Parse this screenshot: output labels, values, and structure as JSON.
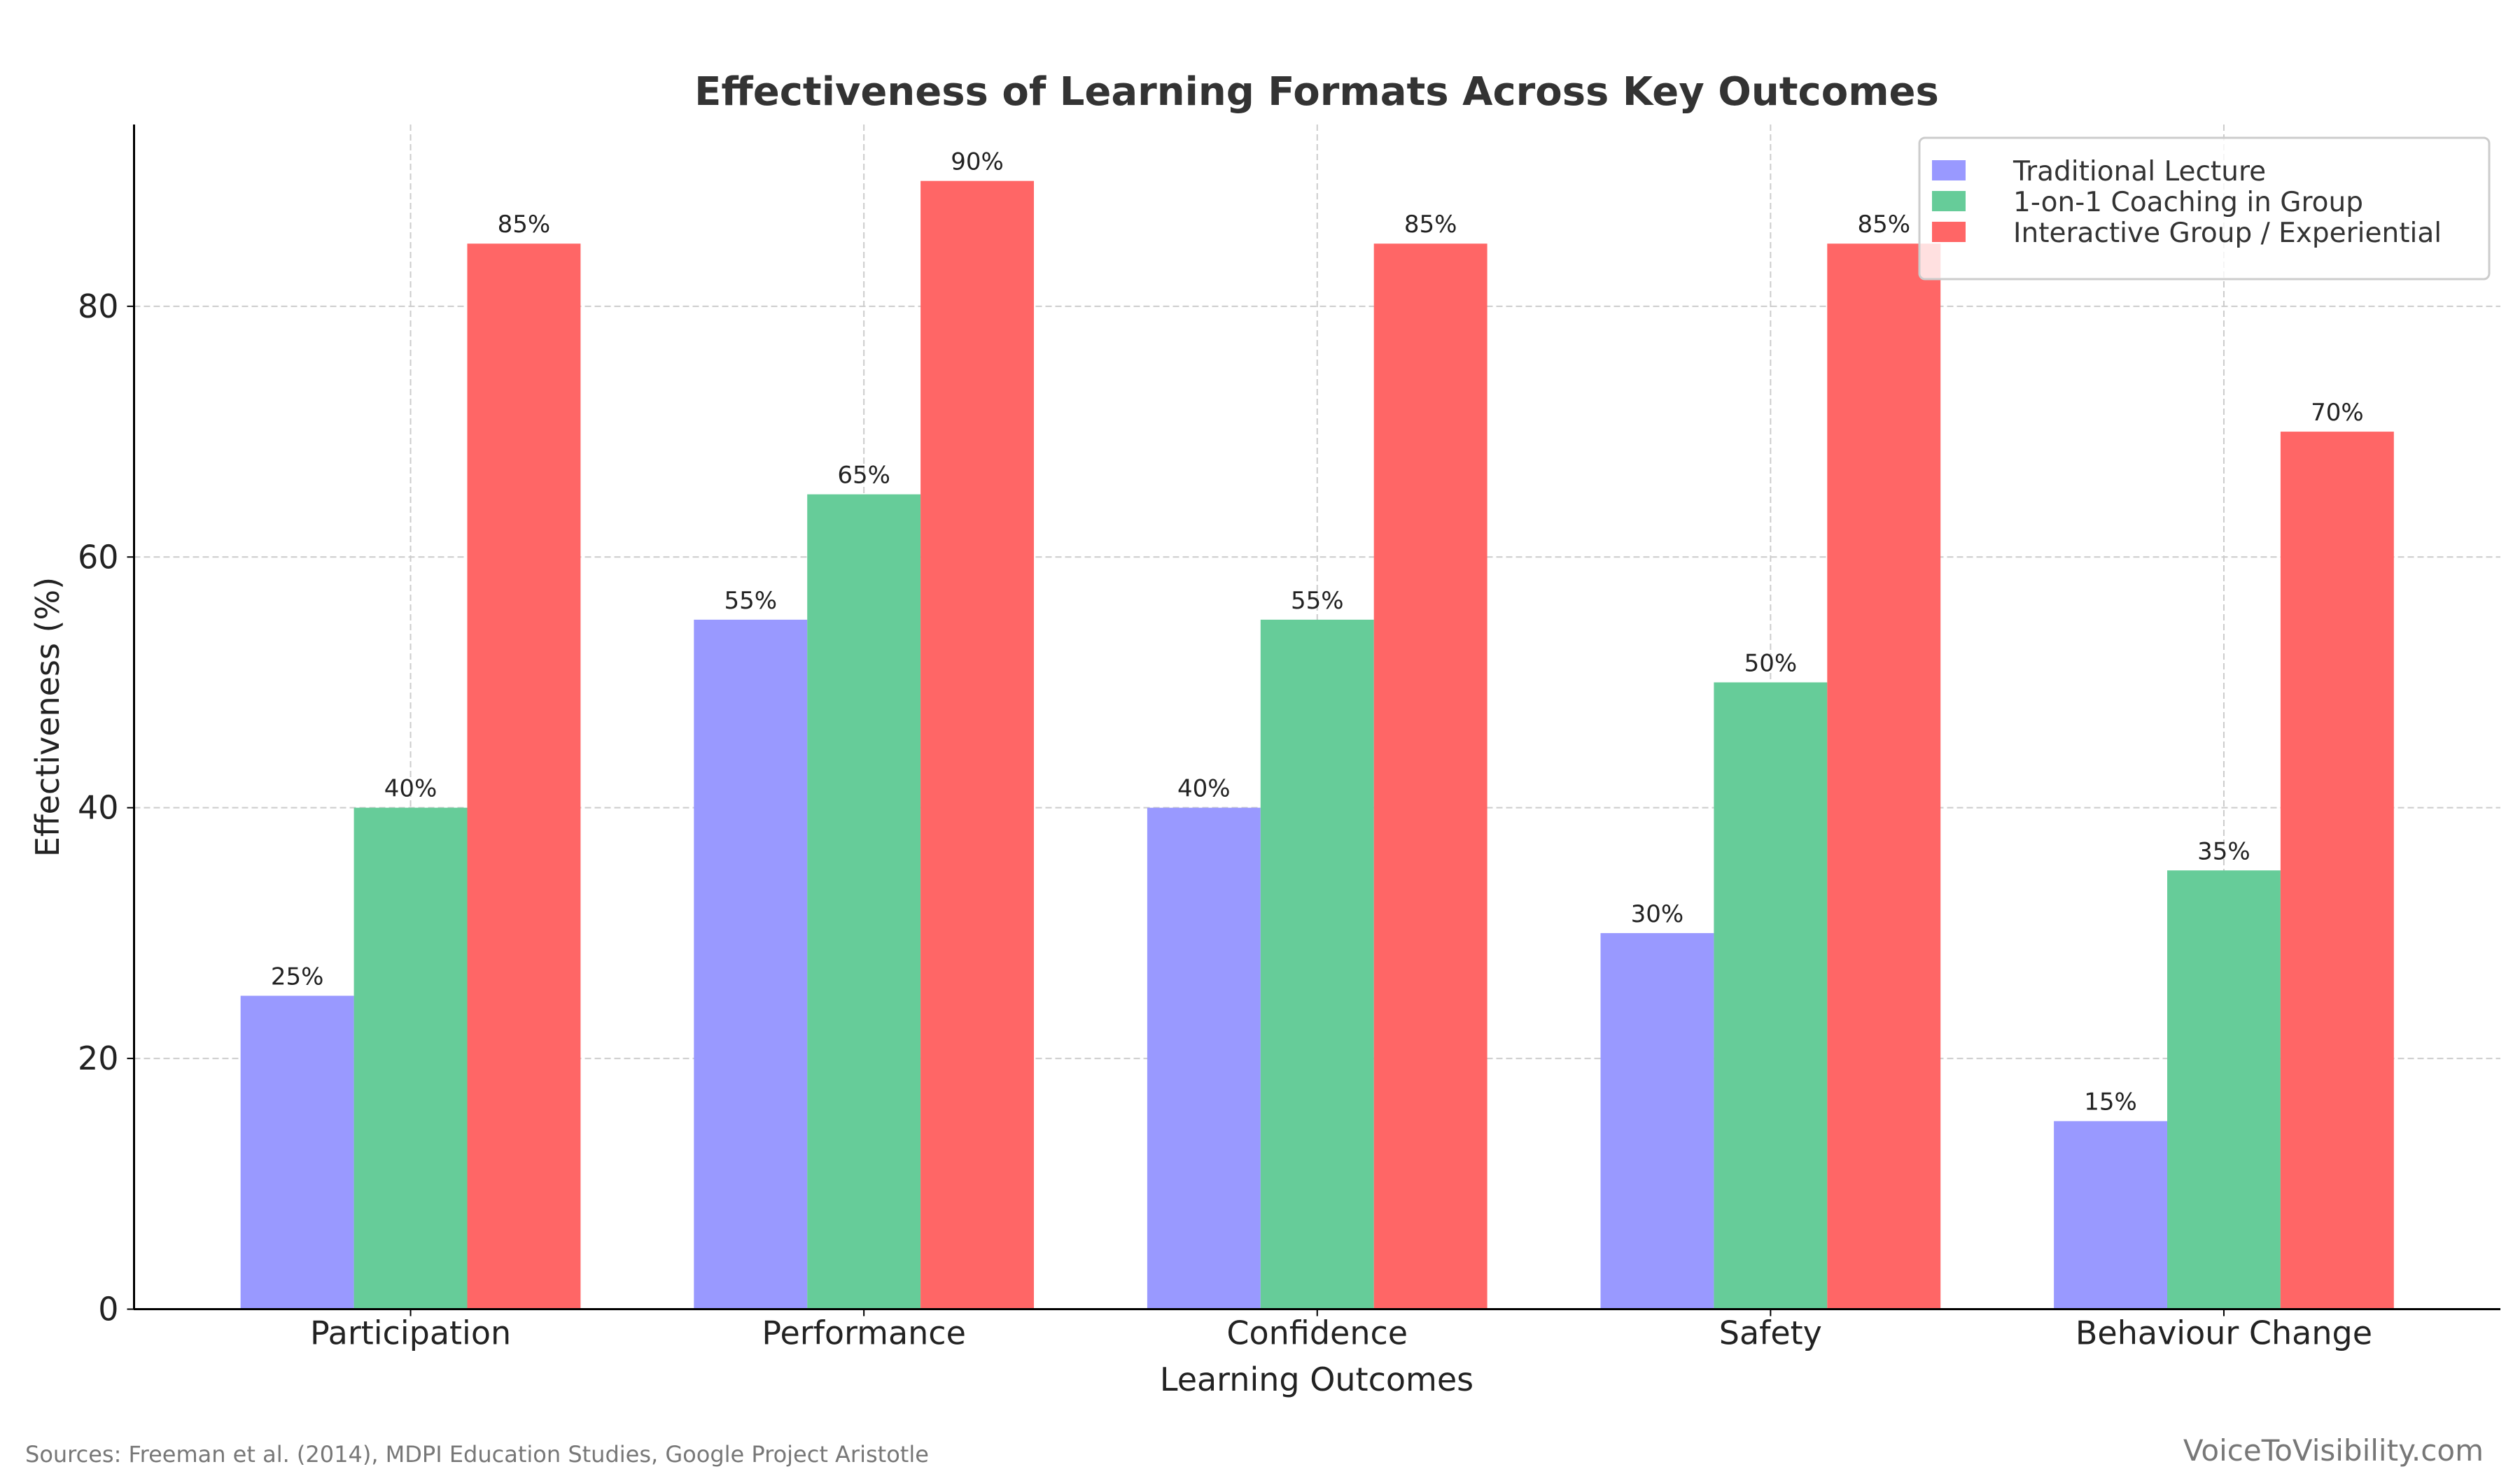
{
  "chart_data": {
    "type": "bar",
    "title": "Effectiveness of Learning Formats Across Key Outcomes",
    "xlabel": "Learning Outcomes",
    "ylabel": "Effectiveness (%)",
    "categories": [
      "Participation",
      "Performance",
      "Confidence",
      "Safety",
      "Behaviour Change"
    ],
    "series": [
      {
        "name": "Traditional Lecture",
        "color": "#9999ff",
        "values": [
          25,
          55,
          40,
          30,
          15
        ],
        "labels": [
          "25%",
          "55%",
          "40%",
          "30%",
          "15%"
        ]
      },
      {
        "name": "1-on-1 Coaching in Group",
        "color": "#66cc99",
        "values": [
          40,
          65,
          55,
          50,
          35
        ],
        "labels": [
          "40%",
          "65%",
          "55%",
          "50%",
          "35%"
        ]
      },
      {
        "name": "Interactive Group / Experiential",
        "color": "#ff6666",
        "values": [
          85,
          90,
          85,
          85,
          70
        ],
        "labels": [
          "85%",
          "90%",
          "85%",
          "85%",
          "70%"
        ]
      }
    ],
    "ylim": [
      0,
      94.5
    ],
    "yticks": [
      0,
      20,
      40,
      60,
      80
    ],
    "grid": true,
    "legend": "top-right"
  },
  "footer": {
    "sources": "Sources: Freeman et al. (2014), MDPI Education Studies, Google Project Aristotle",
    "watermark": "VoiceToVisibility.com"
  }
}
